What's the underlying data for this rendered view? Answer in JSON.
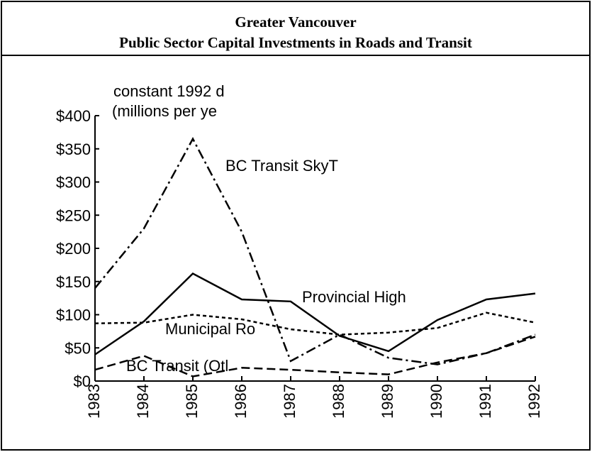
{
  "chart_data": {
    "type": "line",
    "title": "Greater Vancouver",
    "subtitle": "Public Sector Capital Investments in Roads and Transit",
    "ylabel_lines": [
      "constant 1992 d",
      "(millions per ye"
    ],
    "categories": [
      "1983",
      "1984",
      "1985",
      "1986",
      "1987",
      "1988",
      "1989",
      "1990",
      "1991",
      "1992"
    ],
    "series": [
      {
        "name": "BC Transit SkyT",
        "color": "#000000",
        "dash": "dashdot",
        "values": [
          140,
          230,
          365,
          225,
          30,
          70,
          35,
          25,
          42,
          70
        ]
      },
      {
        "name": "Provincial High",
        "color": "#000000",
        "dash": "solid",
        "values": [
          40,
          90,
          162,
          123,
          120,
          68,
          45,
          92,
          123,
          132
        ]
      },
      {
        "name": "Municipal Ro",
        "color": "#000000",
        "dash": "dashed",
        "values": [
          87,
          88,
          100,
          93,
          78,
          70,
          73,
          80,
          103,
          88
        ]
      },
      {
        "name": "BC Transit (Otl",
        "color": "#000000",
        "dash": "longdash",
        "values": [
          17,
          38,
          7,
          20,
          17,
          13,
          10,
          28,
          42,
          67
        ]
      }
    ],
    "ylim": [
      0,
      400
    ],
    "yticks": [
      {
        "value": 0,
        "label": "$0"
      },
      {
        "value": 50,
        "label": "$50"
      },
      {
        "value": 100,
        "label": "$100"
      },
      {
        "value": 150,
        "label": "$150"
      },
      {
        "value": 200,
        "label": "$200"
      },
      {
        "value": 250,
        "label": "$250"
      },
      {
        "value": 300,
        "label": "$300"
      },
      {
        "value": 350,
        "label": "$350"
      },
      {
        "value": 400,
        "label": "$400"
      }
    ],
    "grid": false
  }
}
